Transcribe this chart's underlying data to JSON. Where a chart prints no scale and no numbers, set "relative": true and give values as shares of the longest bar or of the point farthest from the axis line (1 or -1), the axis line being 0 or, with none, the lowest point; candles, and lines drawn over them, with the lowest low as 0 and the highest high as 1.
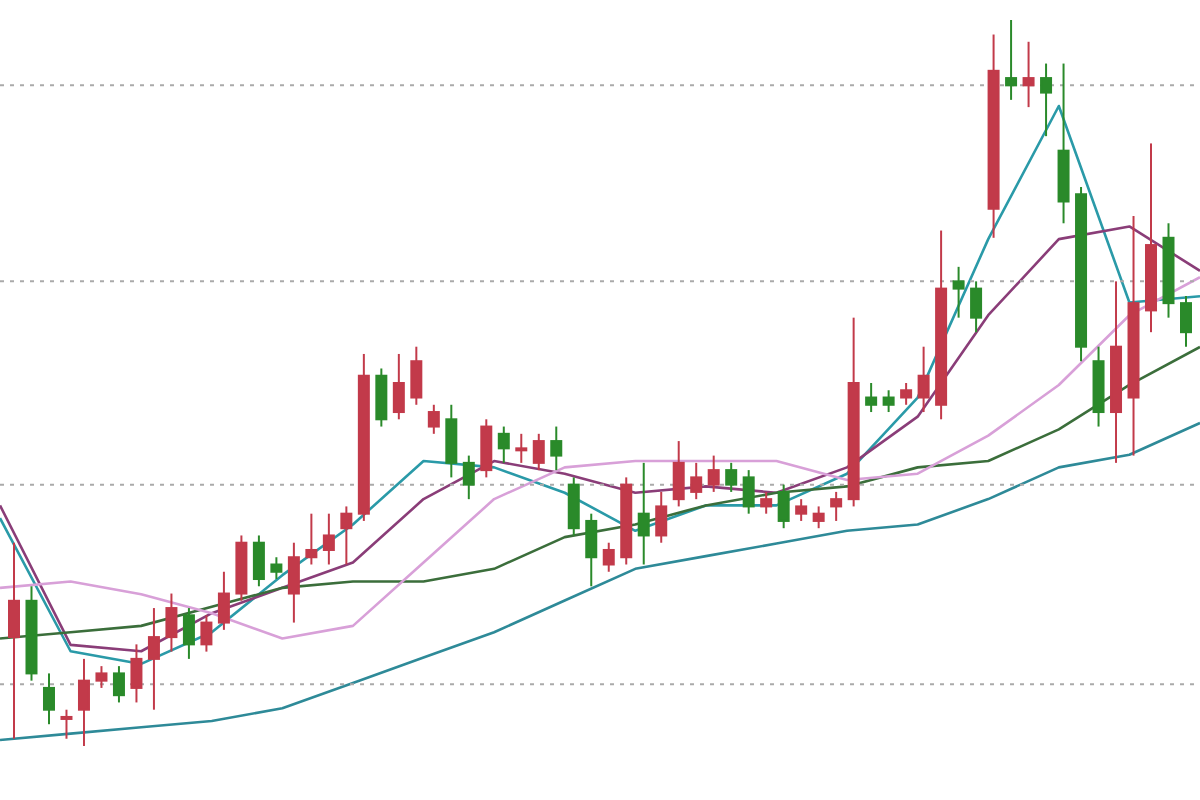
{
  "chart_data": [
    {
      "type": "candlestick",
      "relative": true,
      "tick_labels": false,
      "categories": [
        null,
        null,
        null,
        null,
        null,
        null,
        null,
        null,
        null,
        null,
        null,
        null,
        null,
        null,
        null,
        null,
        null,
        null,
        null,
        null,
        null,
        null,
        null,
        null,
        null,
        null,
        null,
        null,
        null,
        null,
        null,
        null,
        null,
        null,
        null,
        null,
        null,
        null,
        null,
        null,
        null,
        null,
        null,
        null,
        null,
        null,
        null,
        null,
        null,
        null,
        null,
        null,
        null,
        null,
        null,
        null,
        null,
        null,
        null,
        null,
        null,
        null,
        null,
        null,
        null,
        null,
        null,
        null
      ],
      "ohlc": [
        [
          0.15,
          0.28,
          0.01,
          0.2
        ],
        [
          0.2,
          0.22,
          0.09,
          0.1
        ],
        [
          0.08,
          0.1,
          0.03,
          0.05
        ],
        [
          0.04,
          0.05,
          0.01,
          0.04
        ],
        [
          0.05,
          0.12,
          0,
          0.09
        ],
        [
          0.09,
          0.11,
          0.08,
          0.1
        ],
        [
          0.1,
          0.11,
          0.06,
          0.07
        ],
        [
          0.08,
          0.14,
          0.06,
          0.12
        ],
        [
          0.12,
          0.19,
          0.05,
          0.15
        ],
        [
          0.15,
          0.21,
          0.13,
          0.19
        ],
        [
          0.18,
          0.19,
          0.12,
          0.14
        ],
        [
          0.14,
          0.18,
          0.13,
          0.17
        ],
        [
          0.17,
          0.24,
          0.16,
          0.21
        ],
        [
          0.21,
          0.29,
          0.2,
          0.28
        ],
        [
          0.28,
          0.29,
          0.22,
          0.23
        ],
        [
          0.25,
          0.26,
          0.23,
          0.24
        ],
        [
          0.21,
          0.28,
          0.17,
          0.26
        ],
        [
          0.26,
          0.32,
          0.25,
          0.27
        ],
        [
          0.27,
          0.32,
          0.25,
          0.29
        ],
        [
          0.3,
          0.33,
          0.25,
          0.32
        ],
        [
          0.32,
          0.54,
          0.31,
          0.51
        ],
        [
          0.51,
          0.52,
          0.44,
          0.45
        ],
        [
          0.46,
          0.54,
          0.45,
          0.5
        ],
        [
          0.48,
          0.55,
          0.47,
          0.53
        ],
        [
          0.44,
          0.47,
          0.43,
          0.46
        ],
        [
          0.45,
          0.47,
          0.37,
          0.39
        ],
        [
          0.39,
          0.4,
          0.34,
          0.36
        ],
        [
          0.38,
          0.45,
          0.37,
          0.44
        ],
        [
          0.43,
          0.44,
          0.39,
          0.41
        ],
        [
          0.41,
          0.43,
          0.39,
          0.41
        ],
        [
          0.39,
          0.43,
          0.38,
          0.42
        ],
        [
          0.42,
          0.44,
          0.38,
          0.4
        ],
        [
          0.36,
          0.37,
          0.29,
          0.3
        ],
        [
          0.31,
          0.32,
          0.22,
          0.26
        ],
        [
          0.25,
          0.28,
          0.24,
          0.27
        ],
        [
          0.26,
          0.37,
          0.25,
          0.36
        ],
        [
          0.32,
          0.39,
          0.25,
          0.29
        ],
        [
          0.29,
          0.35,
          0.28,
          0.33
        ],
        [
          0.34,
          0.42,
          0.33,
          0.39
        ],
        [
          0.35,
          0.39,
          0.34,
          0.37
        ],
        [
          0.36,
          0.4,
          0.35,
          0.38
        ],
        [
          0.38,
          0.39,
          0.35,
          0.36
        ],
        [
          0.37,
          0.38,
          0.32,
          0.33
        ],
        [
          0.33,
          0.35,
          0.32,
          0.34
        ],
        [
          0.35,
          0.36,
          0.3,
          0.31
        ],
        [
          0.32,
          0.34,
          0.31,
          0.33
        ],
        [
          0.31,
          0.33,
          0.3,
          0.32
        ],
        [
          0.33,
          0.35,
          0.31,
          0.34
        ],
        [
          0.34,
          0.59,
          0.33,
          0.5
        ],
        [
          0.48,
          0.5,
          0.46,
          0.47
        ],
        [
          0.48,
          0.49,
          0.46,
          0.47
        ],
        [
          0.48,
          0.5,
          0.47,
          0.49
        ],
        [
          0.48,
          0.55,
          0.46,
          0.51
        ],
        [
          0.47,
          0.71,
          0.45,
          0.63
        ],
        [
          0.64,
          0.66,
          0.59,
          0.63
        ],
        [
          0.63,
          0.64,
          0.57,
          0.59
        ],
        [
          0.74,
          0.98,
          0.7,
          0.93
        ],
        [
          0.92,
          1,
          0.89,
          0.91
        ],
        [
          0.91,
          0.97,
          0.88,
          0.92
        ],
        [
          0.92,
          0.94,
          0.84,
          0.9
        ],
        [
          0.82,
          0.94,
          0.72,
          0.75
        ],
        [
          0.76,
          0.77,
          0.53,
          0.55
        ],
        [
          0.53,
          0.55,
          0.44,
          0.46
        ],
        [
          0.46,
          0.64,
          0.39,
          0.55
        ],
        [
          0.48,
          0.73,
          0.4,
          0.61
        ],
        [
          0.6,
          0.83,
          0.57,
          0.69
        ],
        [
          0.7,
          0.72,
          0.59,
          0.61
        ],
        [
          0.61,
          0.62,
          0.55,
          0.57
        ]
      ],
      "colors": [
        "#c23a4a",
        "#2a8a2a",
        "#2a8a2a",
        "#c23a4a",
        "#c23a4a",
        "#c23a4a",
        "#2a8a2a",
        "#c23a4a",
        "#c23a4a",
        "#c23a4a",
        "#2a8a2a",
        "#c23a4a",
        "#c23a4a",
        "#c23a4a",
        "#2a8a2a",
        "#2a8a2a",
        "#c23a4a",
        "#c23a4a",
        "#c23a4a",
        "#c23a4a",
        "#c23a4a",
        "#2a8a2a",
        "#c23a4a",
        "#c23a4a",
        "#c23a4a",
        "#2a8a2a",
        "#2a8a2a",
        "#c23a4a",
        "#2a8a2a",
        "#c23a4a",
        "#c23a4a",
        "#2a8a2a",
        "#2a8a2a",
        "#2a8a2a",
        "#c23a4a",
        "#c23a4a",
        "#2a8a2a",
        "#c23a4a",
        "#c23a4a",
        "#c23a4a",
        "#c23a4a",
        "#2a8a2a",
        "#2a8a2a",
        "#c23a4a",
        "#2a8a2a",
        "#c23a4a",
        "#c23a4a",
        "#c23a4a",
        "#c23a4a",
        "#2a8a2a",
        "#2a8a2a",
        "#c23a4a",
        "#c23a4a",
        "#c23a4a",
        "#2a8a2a",
        "#2a8a2a",
        "#c23a4a",
        "#2a8a2a",
        "#c23a4a",
        "#2a8a2a",
        "#2a8a2a",
        "#2a8a2a",
        "#2a8a2a",
        "#c23a4a",
        "#c23a4a",
        "#c23a4a",
        "#2a8a2a",
        "#2a8a2a"
      ],
      "ref_lines": [
        {
          "axis": "y",
          "value": 0.91,
          "color": "#aaaaaa",
          "line_style": "dotted"
        },
        {
          "axis": "y",
          "value": 0.64,
          "color": "#aaaaaa",
          "line_style": "dotted"
        },
        {
          "axis": "y",
          "value": 0.36,
          "color": "#aaaaaa",
          "line_style": "dotted"
        },
        {
          "axis": "y",
          "value": 0.085,
          "color": "#aaaaaa",
          "line_style": "dotted"
        }
      ]
    },
    {
      "type": "line",
      "relative": true,
      "tick_labels": false,
      "categories": [
        null,
        null,
        null,
        null,
        null,
        null,
        null,
        null,
        null,
        null,
        null,
        null,
        null,
        null,
        null,
        null,
        null,
        null
      ],
      "series": [
        {
          "color": "#2a9aa8",
          "values": [
            0.35,
            0.14,
            0.12,
            0.17,
            0.26,
            0.34,
            0.44,
            0.43,
            0.39,
            0.33,
            0.37,
            0.37,
            0.42,
            0.54,
            0.79,
            1,
            0.69,
            0.7
          ]
        },
        {
          "color": "#8a3d78",
          "values": [
            0.37,
            0.15,
            0.14,
            0.2,
            0.24,
            0.28,
            0.38,
            0.44,
            0.42,
            0.39,
            0.4,
            0.39,
            0.43,
            0.51,
            0.67,
            0.79,
            0.81,
            0.74
          ]
        },
        {
          "color": "#3b6e3b",
          "values": [
            0.16,
            0.17,
            0.18,
            0.21,
            0.24,
            0.25,
            0.25,
            0.27,
            0.32,
            0.34,
            0.37,
            0.39,
            0.4,
            0.43,
            0.44,
            0.49,
            0.56,
            0.62
          ]
        },
        {
          "color": "#d8a0d8",
          "values": [
            0.24,
            0.25,
            0.23,
            0.2,
            0.16,
            0.18,
            0.28,
            0.38,
            0.43,
            0.44,
            0.44,
            0.44,
            0.41,
            0.42,
            0.48,
            0.56,
            0.67,
            0.73
          ]
        },
        {
          "color": "#2e8a98",
          "values": [
            0,
            0.01,
            0.02,
            0.03,
            0.05,
            0.09,
            0.13,
            0.17,
            0.22,
            0.27,
            0.29,
            0.31,
            0.33,
            0.34,
            0.38,
            0.43,
            0.45,
            0.5
          ]
        }
      ]
    }
  ]
}
